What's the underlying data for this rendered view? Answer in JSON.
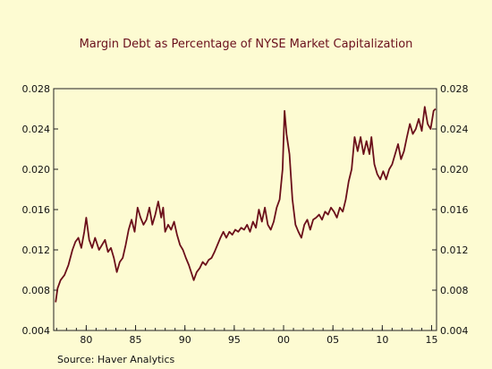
{
  "chart_data": {
    "type": "line",
    "title": "Margin Debt as Percentage of NYSE Market Capitalization",
    "source": "Source:   Haver Analytics",
    "xlabel": "",
    "ylabel": "",
    "xlim": [
      1976.7,
      2015.5
    ],
    "ylim": [
      0.004,
      0.028
    ],
    "y_ticks": [
      0.004,
      0.008,
      0.012,
      0.016,
      0.02,
      0.024,
      0.028
    ],
    "y_tick_labels": [
      "0.004",
      "0.008",
      "0.012",
      "0.016",
      "0.020",
      "0.024",
      "0.028"
    ],
    "x_ticks": [
      1980,
      1985,
      1990,
      1995,
      2000,
      2005,
      2010,
      2015
    ],
    "x_tick_labels": [
      "80",
      "85",
      "90",
      "95",
      "00",
      "05",
      "10",
      "15"
    ],
    "grid": false,
    "line_color": "#6b0f1a",
    "series": [
      {
        "x": [
          1976.9,
          1977.1,
          1977.4,
          1977.8,
          1978.2,
          1978.6,
          1978.9,
          1979.2,
          1979.5,
          1979.8,
          1980.0,
          1980.3,
          1980.6,
          1980.9,
          1981.3,
          1981.6,
          1981.9,
          1982.2,
          1982.5,
          1982.8,
          1983.1,
          1983.4,
          1983.7,
          1984.0,
          1984.3,
          1984.6,
          1984.9,
          1985.2,
          1985.5,
          1985.8,
          1986.1,
          1986.4,
          1986.7,
          1987.0,
          1987.3,
          1987.6,
          1987.8,
          1988.0,
          1988.3,
          1988.6,
          1988.9,
          1989.2,
          1989.5,
          1989.8,
          1990.1,
          1990.4,
          1990.7,
          1990.9,
          1991.2,
          1991.5,
          1991.8,
          1992.1,
          1992.4,
          1992.7,
          1993.0,
          1993.3,
          1993.6,
          1993.9,
          1994.2,
          1994.5,
          1994.8,
          1995.1,
          1995.4,
          1995.7,
          1996.0,
          1996.3,
          1996.6,
          1996.9,
          1997.2,
          1997.5,
          1997.8,
          1998.1,
          1998.4,
          1998.7,
          1999.0,
          1999.3,
          1999.6,
          1999.9,
          2000.1,
          2000.3,
          2000.6,
          2000.9,
          2001.2,
          2001.5,
          2001.8,
          2002.1,
          2002.4,
          2002.7,
          2003.0,
          2003.3,
          2003.6,
          2003.9,
          2004.2,
          2004.5,
          2004.8,
          2005.1,
          2005.4,
          2005.7,
          2006.0,
          2006.3,
          2006.6,
          2006.9,
          2007.2,
          2007.5,
          2007.8,
          2008.1,
          2008.4,
          2008.7,
          2008.9,
          2009.2,
          2009.5,
          2009.8,
          2010.1,
          2010.4,
          2010.7,
          2011.0,
          2011.3,
          2011.6,
          2011.9,
          2012.2,
          2012.5,
          2012.8,
          2013.1,
          2013.4,
          2013.7,
          2014.0,
          2014.3,
          2014.6,
          2014.9,
          2015.2,
          2015.4
        ],
        "y": [
          0.0068,
          0.0082,
          0.009,
          0.0095,
          0.0105,
          0.012,
          0.0128,
          0.0132,
          0.0122,
          0.0138,
          0.0152,
          0.013,
          0.0122,
          0.0132,
          0.012,
          0.0125,
          0.013,
          0.0118,
          0.0122,
          0.0112,
          0.0098,
          0.0108,
          0.0112,
          0.0125,
          0.014,
          0.015,
          0.0138,
          0.0162,
          0.0152,
          0.0145,
          0.015,
          0.0162,
          0.0145,
          0.0155,
          0.0168,
          0.0152,
          0.0162,
          0.0138,
          0.0145,
          0.014,
          0.0148,
          0.0135,
          0.0125,
          0.012,
          0.0112,
          0.0105,
          0.0096,
          0.009,
          0.0098,
          0.0102,
          0.0108,
          0.0105,
          0.011,
          0.0112,
          0.0118,
          0.0125,
          0.0132,
          0.0138,
          0.0132,
          0.0138,
          0.0135,
          0.014,
          0.0138,
          0.0142,
          0.014,
          0.0145,
          0.0138,
          0.0148,
          0.0142,
          0.016,
          0.0148,
          0.0162,
          0.0145,
          0.014,
          0.0148,
          0.0162,
          0.017,
          0.02,
          0.0258,
          0.0235,
          0.0215,
          0.017,
          0.0145,
          0.0138,
          0.0132,
          0.0145,
          0.015,
          0.014,
          0.015,
          0.0152,
          0.0155,
          0.015,
          0.0158,
          0.0155,
          0.0162,
          0.0158,
          0.0152,
          0.0162,
          0.0158,
          0.017,
          0.0188,
          0.02,
          0.0232,
          0.0218,
          0.0232,
          0.0215,
          0.0228,
          0.0215,
          0.0232,
          0.0205,
          0.0195,
          0.019,
          0.0198,
          0.019,
          0.02,
          0.0205,
          0.0215,
          0.0225,
          0.021,
          0.0218,
          0.0232,
          0.0245,
          0.0235,
          0.024,
          0.025,
          0.0238,
          0.0262,
          0.0245,
          0.024,
          0.0258,
          0.026
        ]
      }
    ]
  }
}
